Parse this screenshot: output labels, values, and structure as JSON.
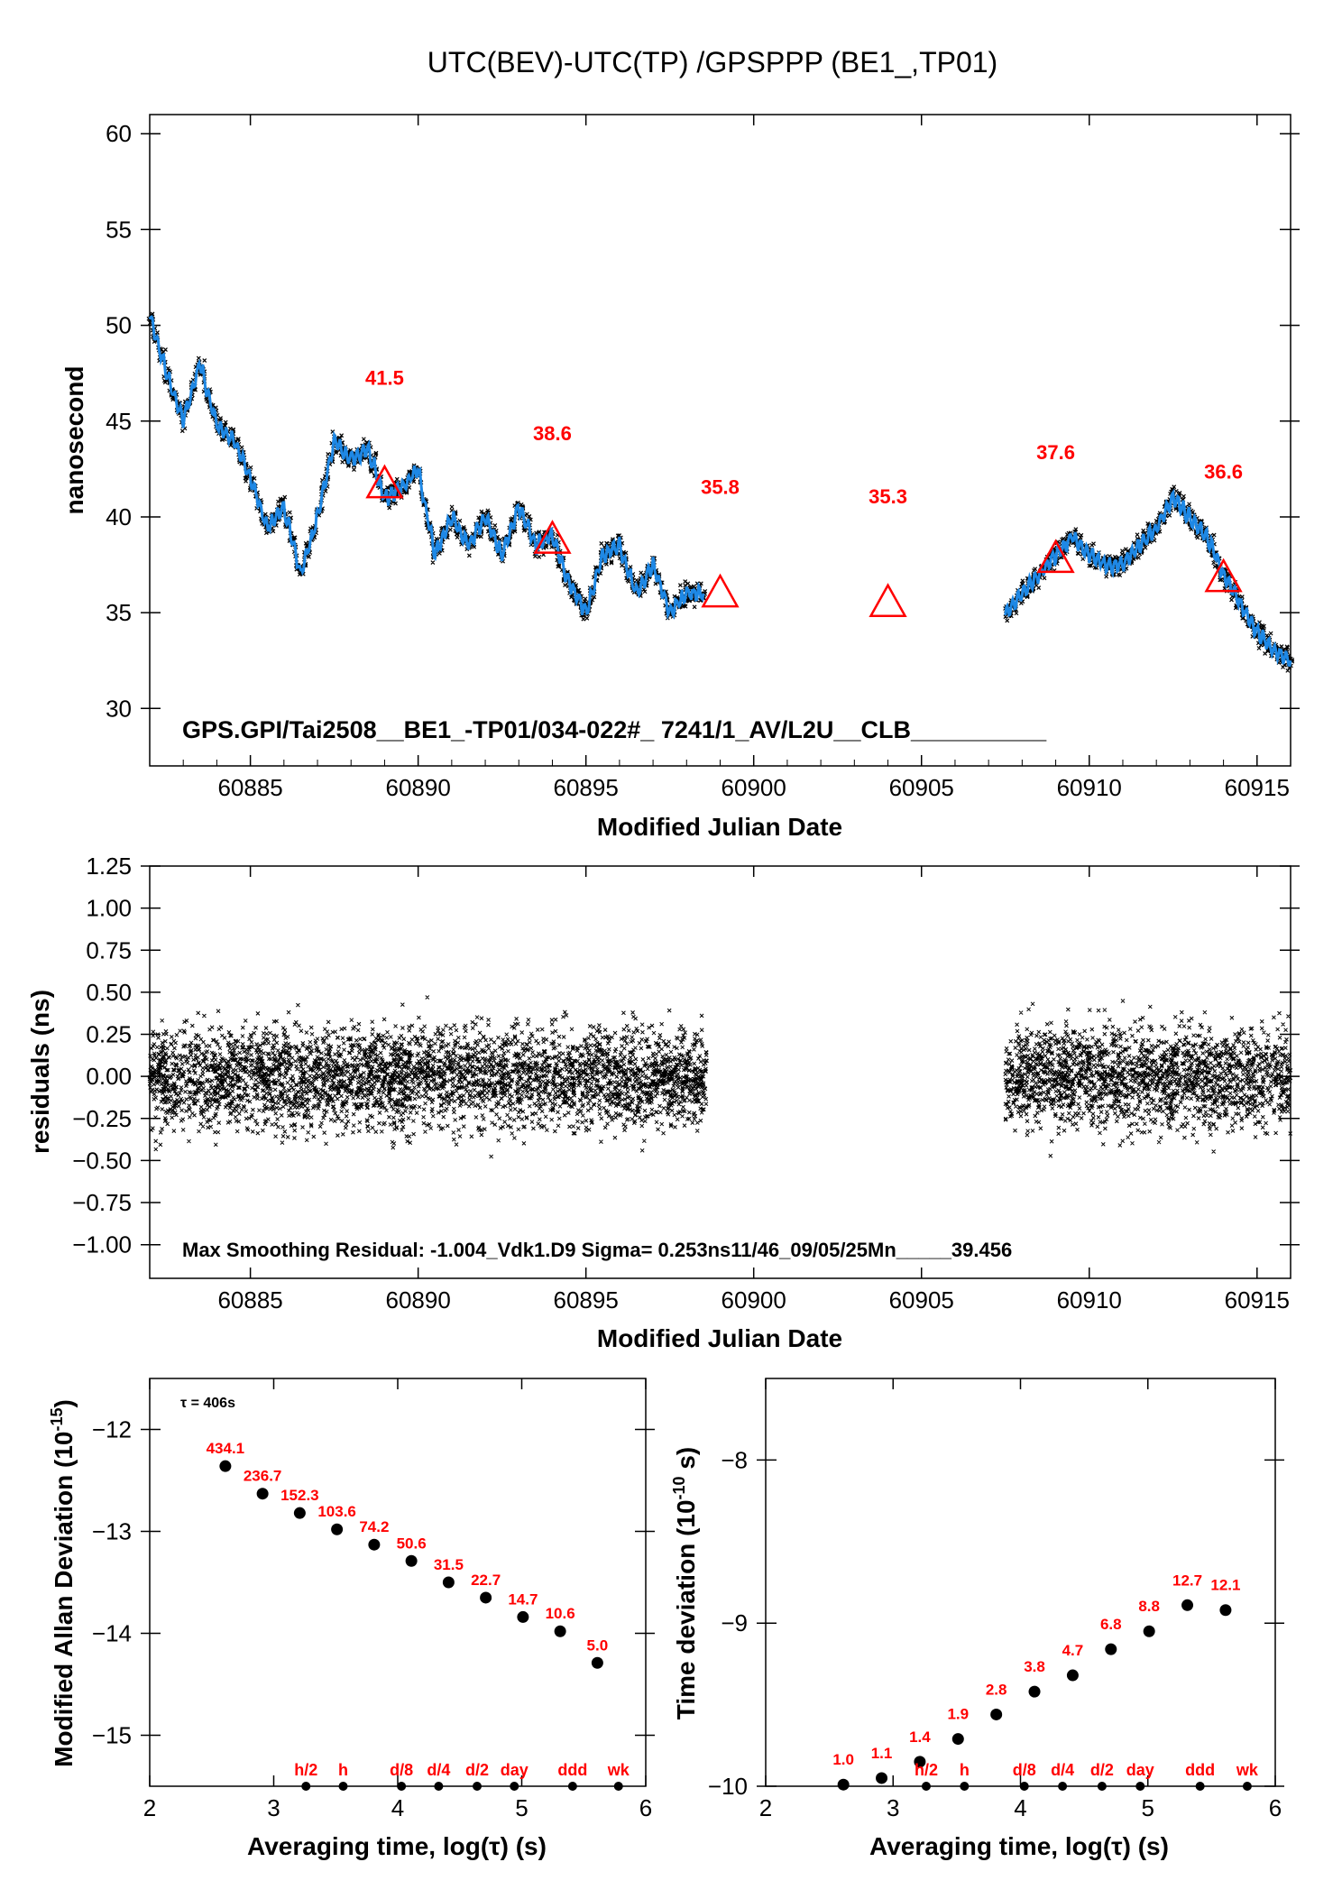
{
  "title": "UTC(BEV)-UTC(TP)  /GPSPPP  (BE1_,TP01)",
  "colors": {
    "series": "#1e88e5",
    "raw": "#000000",
    "annotation": "#ff0000"
  },
  "chart_data": [
    {
      "type": "line",
      "ylabel": "nanosecond",
      "xlabel": "Modified Julian Date",
      "xlim": [
        60882,
        60916
      ],
      "ylim": [
        27,
        61
      ],
      "xticks": [
        "60885",
        "60890",
        "60895",
        "60900",
        "60905",
        "60910",
        "60915"
      ],
      "yticks": [
        "30",
        "35",
        "40",
        "45",
        "50",
        "55",
        "60"
      ],
      "note": "GPS.GPI/Tai2508__BE1_-TP01/034-022#_  7241/1_AV/L2U__CLB__________",
      "series": [
        {
          "x": [
            60882,
            60882.5,
            60883,
            60883.5,
            60884,
            60884.5,
            60885,
            60885.5,
            60886,
            60886.5,
            60887,
            60887.5,
            60888,
            60888.5,
            60889,
            60889.5,
            60890,
            60890.5,
            60891,
            60891.5,
            60892,
            60892.5,
            60893,
            60893.5,
            60894,
            60894.5,
            60895,
            60895.5,
            60896,
            60896.5,
            60897,
            60897.5,
            60898,
            60898.5
          ],
          "y": [
            50.5,
            47.5,
            45.0,
            48.0,
            44.8,
            44.0,
            42.0,
            39.5,
            40.5,
            37.0,
            40.0,
            44.0,
            43.0,
            43.5,
            41.0,
            41.5,
            42.5,
            38.0,
            40.0,
            38.5,
            40.0,
            38.0,
            40.5,
            38.5,
            39.0,
            36.5,
            35.0,
            38.0,
            38.5,
            36.0,
            37.5,
            35.0,
            36.0,
            36.0
          ]
        },
        {
          "x": [
            60907.5,
            60908,
            60908.5,
            60909,
            60909.5,
            60910,
            60910.5,
            60911,
            60911.5,
            60912,
            60912.5,
            60913,
            60913.5,
            60914,
            60914.5,
            60915,
            60915.5,
            60916
          ],
          "y": [
            35.0,
            36.0,
            37.0,
            38.0,
            39.0,
            38.0,
            37.5,
            37.5,
            38.5,
            39.5,
            41.0,
            40.0,
            39.0,
            37.0,
            35.5,
            34.0,
            33.0,
            32.5
          ]
        }
      ],
      "annotations": [
        {
          "x": 60889,
          "y": 41.5,
          "label": "41.5"
        },
        {
          "x": 60894,
          "y": 38.6,
          "label": "38.6"
        },
        {
          "x": 60899,
          "y": 35.8,
          "label": "35.8"
        },
        {
          "x": 60904,
          "y": 35.3,
          "label": "35.3"
        },
        {
          "x": 60909,
          "y": 37.6,
          "label": "37.6"
        },
        {
          "x": 60914,
          "y": 36.6,
          "label": "36.6"
        }
      ]
    },
    {
      "type": "scatter",
      "ylabel": "residuals (ns)",
      "xlabel": "Modified Julian Date",
      "xlim": [
        60882,
        60916
      ],
      "ylim": [
        -1.2,
        1.25
      ],
      "xticks": [
        "60885",
        "60890",
        "60895",
        "60900",
        "60905",
        "60910",
        "60915"
      ],
      "yticks": [
        "−1.00",
        "−0.75",
        "−0.50",
        "−0.25",
        "0.00",
        "0.25",
        "0.50",
        "0.75",
        "1.00",
        "1.25"
      ],
      "segments": [
        [
          60882,
          60898.6
        ],
        [
          60907.5,
          60916
        ]
      ],
      "sigma": 0.253,
      "note": "Max Smoothing Residual: -1.004_Vdk1.D9  Sigma= 0.253ns11/46_09/05/25Mn_____39.456"
    },
    {
      "type": "scatter",
      "ylabel": "Modified Allan Deviation (10",
      "ylabel_sup": "-15",
      "ylabel_end": ")",
      "xlabel": "Averaging time, log(τ) (s)",
      "xlim": [
        2,
        6
      ],
      "ylim": [
        -15.5,
        -11.5
      ],
      "xticks": [
        "2",
        "3",
        "4",
        "5",
        "6"
      ],
      "yticks": [
        "−12",
        "−13",
        "−14",
        "−15"
      ],
      "tau_label": "τ = 406s",
      "x": [
        2.61,
        2.91,
        3.21,
        3.51,
        3.81,
        4.11,
        4.41,
        4.71,
        5.01,
        5.31,
        5.61
      ],
      "y": [
        -12.36,
        -12.63,
        -12.82,
        -12.98,
        -13.13,
        -13.29,
        -13.5,
        -13.65,
        -13.84,
        -13.98,
        -14.29
      ],
      "labels": [
        "434.1",
        "236.7",
        "152.3",
        "103.6",
        "74.2",
        "50.6",
        "31.5",
        "22.7",
        "14.7",
        "10.6",
        "5.0"
      ],
      "markers": [
        {
          "x": 3.26,
          "label": "h/2"
        },
        {
          "x": 3.56,
          "label": "h"
        },
        {
          "x": 4.03,
          "label": "d/8"
        },
        {
          "x": 4.33,
          "label": "d/4"
        },
        {
          "x": 4.64,
          "label": "d/2"
        },
        {
          "x": 4.94,
          "label": "day"
        },
        {
          "x": 5.41,
          "label": "ddd"
        },
        {
          "x": 5.78,
          "label": "wk"
        }
      ]
    },
    {
      "type": "scatter",
      "ylabel": "Time deviation (10",
      "ylabel_sup": "-10",
      "ylabel_end": " s)",
      "xlabel": "Averaging time, log(τ) (s)",
      "xlim": [
        2,
        6
      ],
      "ylim": [
        -10,
        -7.5
      ],
      "xticks": [
        "2",
        "3",
        "4",
        "5",
        "6"
      ],
      "yticks": [
        "−8",
        "−9",
        "−10"
      ],
      "x": [
        2.61,
        2.91,
        3.21,
        3.51,
        3.81,
        4.11,
        4.41,
        4.71,
        5.01,
        5.31,
        5.61
      ],
      "y": [
        -9.99,
        -9.95,
        -9.85,
        -9.71,
        -9.56,
        -9.42,
        -9.32,
        -9.16,
        -9.05,
        -8.89,
        -8.92
      ],
      "labels": [
        "1.0",
        "1.1",
        "1.4",
        "1.9",
        "2.8",
        "3.8",
        "4.7",
        "6.8",
        "8.8",
        "12.7",
        "12.1"
      ],
      "markers": [
        {
          "x": 3.26,
          "label": "h/2"
        },
        {
          "x": 3.56,
          "label": "h"
        },
        {
          "x": 4.03,
          "label": "d/8"
        },
        {
          "x": 4.33,
          "label": "d/4"
        },
        {
          "x": 4.64,
          "label": "d/2"
        },
        {
          "x": 4.94,
          "label": "day"
        },
        {
          "x": 5.41,
          "label": "ddd"
        },
        {
          "x": 5.78,
          "label": "wk"
        }
      ]
    }
  ]
}
